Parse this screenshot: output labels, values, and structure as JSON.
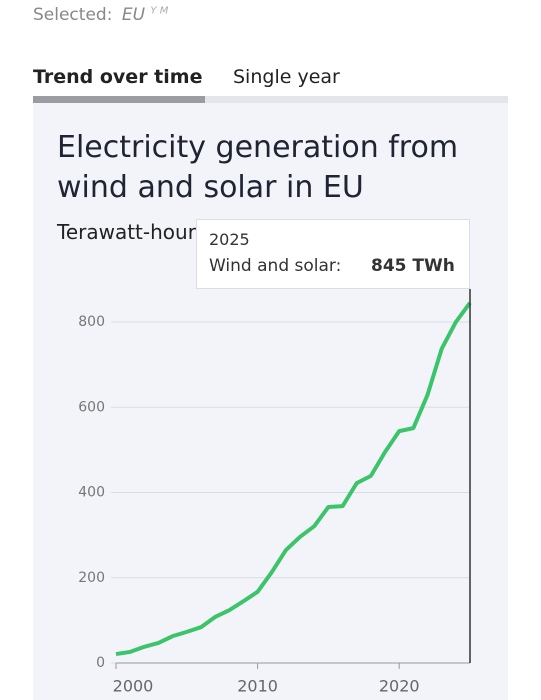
{
  "selected": {
    "label": "Selected:",
    "value": "EU",
    "hint": "Y M"
  },
  "tabs": [
    "Trend over time",
    "Single year"
  ],
  "tooltip": {
    "title": "2025",
    "label": "Wind and solar:",
    "value": "845 TWh"
  },
  "chart_data": {
    "type": "line",
    "title": "Electricity generation from wind and solar in EU",
    "subtitle": "Terawatt-hours",
    "x": [
      2000,
      2001,
      2002,
      2003,
      2004,
      2005,
      2006,
      2007,
      2008,
      2009,
      2010,
      2011,
      2012,
      2013,
      2014,
      2015,
      2016,
      2017,
      2018,
      2019,
      2020,
      2021,
      2022,
      2023,
      2024,
      2025
    ],
    "series": [
      {
        "name": "Wind and solar",
        "color": "#3cc46a",
        "values": [
          21,
          26,
          38,
          47,
          63,
          73,
          84,
          108,
          124,
          145,
          167,
          213,
          265,
          296,
          321,
          366,
          368,
          422,
          439,
          495,
          544,
          551,
          629,
          737,
          800,
          845
        ]
      }
    ],
    "xlim": [
      2000,
      2025
    ],
    "xticks": [
      2000,
      2010,
      2020
    ],
    "ylim": [
      0,
      850
    ],
    "yticks": [
      0,
      200,
      400,
      600,
      800
    ],
    "grid": true
  }
}
